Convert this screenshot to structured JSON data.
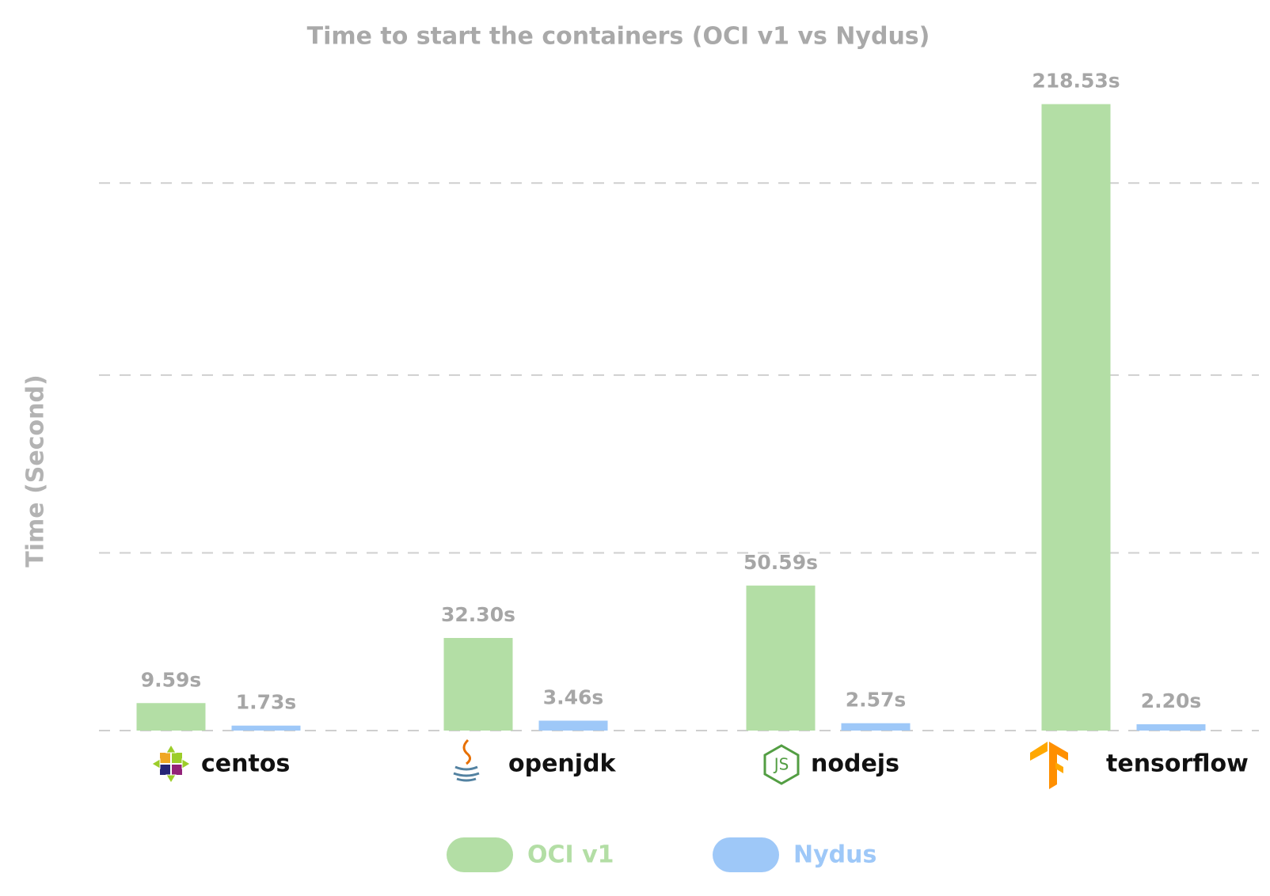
{
  "chart_data": {
    "type": "bar",
    "title": "Time to start the containers (OCI v1 vs Nydus)",
    "y_label": "Time (Second)",
    "categories": [
      "centos",
      "openjdk",
      "nodejs",
      "tensorflow"
    ],
    "series": [
      {
        "name": "OCI v1",
        "color": "#b3dea5",
        "values": [
          9.59,
          32.3,
          50.59,
          218.53
        ],
        "value_labels": [
          "9.59s",
          "32.30s",
          "50.59s",
          "218.53s"
        ]
      },
      {
        "name": "Nydus",
        "color": "#9ec8f8",
        "values": [
          1.73,
          3.46,
          2.57,
          2.2
        ],
        "value_labels": [
          "1.73s",
          "3.46s",
          "2.57s",
          "2.20s"
        ]
      }
    ],
    "ylim": [
      0,
      230
    ],
    "yticks": [
      0,
      62,
      124,
      191
    ],
    "show_ytick_labels": false,
    "grid": true,
    "legend": "bottom"
  }
}
